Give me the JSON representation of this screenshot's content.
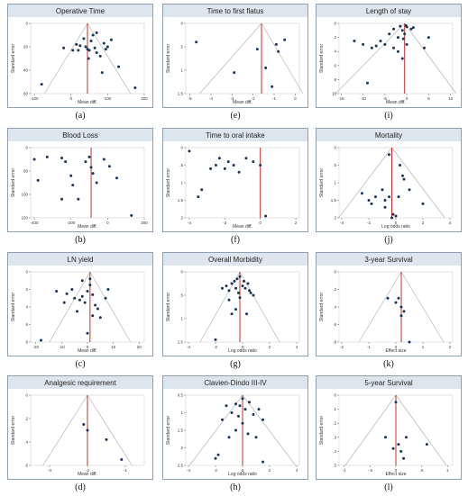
{
  "colors": {
    "panel_bg": "#ffffff",
    "title_band": "#dde6ee",
    "frame": "#8ea0b2",
    "funnel": "#b5b5b5",
    "center_line": "#c0302f",
    "point": "#1a3556",
    "axis_text": "#333333"
  },
  "chart_data": [
    {
      "type": "scatter",
      "panel_label": "(a)",
      "title": "Operative Time",
      "xlabel": "Mean diff.",
      "ylabel": "Standard error",
      "xlim": [
        -110,
        200
      ],
      "ylim": [
        0,
        60
      ],
      "xticks": [
        -100,
        0,
        100,
        200
      ],
      "xtick_labels": [
        "-100",
        "0",
        "100",
        "200"
      ],
      "yticks": [
        0,
        20,
        40,
        60
      ],
      "ytick_labels": [
        "0",
        "20",
        "40",
        "60"
      ],
      "center": 45,
      "funnel": true,
      "points": [
        [
          -80,
          52
        ],
        [
          -20,
          21
        ],
        [
          5,
          23
        ],
        [
          15,
          18
        ],
        [
          25,
          19
        ],
        [
          35,
          13
        ],
        [
          40,
          20
        ],
        [
          45,
          22
        ],
        [
          50,
          23
        ],
        [
          55,
          15
        ],
        [
          60,
          10
        ],
        [
          65,
          21
        ],
        [
          70,
          25
        ],
        [
          80,
          28
        ],
        [
          90,
          17
        ],
        [
          95,
          22
        ],
        [
          100,
          20
        ],
        [
          130,
          37
        ],
        [
          175,
          55
        ],
        [
          110,
          14
        ],
        [
          20,
          23
        ],
        [
          48,
          30
        ],
        [
          85,
          42
        ],
        [
          70,
          8
        ]
      ]
    },
    {
      "type": "scatter",
      "panel_label": "(b)",
      "title": "Blood Loss",
      "xlabel": "Mean diff.",
      "ylabel": "Standard error",
      "xlim": [
        -420,
        200
      ],
      "ylim": [
        0,
        150
      ],
      "xticks": [
        -400,
        -200,
        0,
        200
      ],
      "xtick_labels": [
        "-400",
        "-200",
        "0",
        "200"
      ],
      "yticks": [
        0,
        50,
        100,
        150
      ],
      "ytick_labels": [
        "0",
        "50",
        "100",
        "150"
      ],
      "center": -90,
      "funnel": false,
      "points": [
        [
          -400,
          25
        ],
        [
          -380,
          70
        ],
        [
          -250,
          22
        ],
        [
          -230,
          30
        ],
        [
          -200,
          60
        ],
        [
          -190,
          80
        ],
        [
          -120,
          30
        ],
        [
          -100,
          20
        ],
        [
          -90,
          42
        ],
        [
          -80,
          55
        ],
        [
          -60,
          75
        ],
        [
          -20,
          25
        ],
        [
          10,
          40
        ],
        [
          50,
          65
        ],
        [
          130,
          145
        ],
        [
          -250,
          110
        ],
        [
          -330,
          20
        ],
        [
          -160,
          110
        ]
      ]
    },
    {
      "type": "scatter",
      "panel_label": "(c)",
      "title": "LN yield",
      "xlabel": "Mean diff.",
      "ylabel": "Standard error",
      "xlim": [
        -22,
        22
      ],
      "ylim": [
        0,
        8
      ],
      "xticks": [
        -20,
        -10,
        0,
        10,
        20
      ],
      "xtick_labels": [
        "-20",
        "-10",
        "0",
        "10",
        "20"
      ],
      "yticks": [
        0,
        2,
        4,
        6,
        8
      ],
      "ytick_labels": [
        "0",
        "2",
        "4",
        "6",
        "8"
      ],
      "center": 1,
      "funnel": true,
      "points": [
        [
          -18,
          7.8
        ],
        [
          -12,
          2.2
        ],
        [
          -8,
          2.5
        ],
        [
          -6,
          2.0
        ],
        [
          -5,
          3.0
        ],
        [
          -4,
          4.5
        ],
        [
          -3,
          3.2
        ],
        [
          -2,
          2.8
        ],
        [
          -1,
          3.5
        ],
        [
          0,
          2.2
        ],
        [
          1,
          1.5
        ],
        [
          2,
          2.6
        ],
        [
          3,
          3.8
        ],
        [
          4,
          4.2
        ],
        [
          5,
          5.2
        ],
        [
          7,
          3.0
        ],
        [
          8,
          2.0
        ],
        [
          -9,
          3.5
        ],
        [
          2,
          5.0
        ],
        [
          0,
          7.0
        ],
        [
          -2,
          1.0
        ],
        [
          1,
          0.8
        ]
      ]
    },
    {
      "type": "scatter",
      "panel_label": "(d)",
      "title": "Analgesic requirement",
      "xlabel": "Mean diff.",
      "ylabel": "Standard error",
      "xlim": [
        -3.5,
        -0.5
      ],
      "ylim": [
        0,
        0.6
      ],
      "xticks": [
        -3,
        -2,
        -1
      ],
      "xtick_labels": [
        "-3",
        "-2",
        "-1"
      ],
      "yticks": [
        0,
        0.2,
        0.4,
        0.6
      ],
      "ytick_labels": [
        "0",
        ".2",
        ".4",
        ".6"
      ],
      "center": -2.0,
      "funnel": true,
      "points": [
        [
          -2.1,
          0.25
        ],
        [
          -2.0,
          0.3
        ],
        [
          -1.5,
          0.38
        ],
        [
          -1.1,
          0.55
        ]
      ]
    },
    {
      "type": "scatter",
      "panel_label": "(e)",
      "title": "Time to first flatus",
      "xlabel": "Mean diff.",
      "ylabel": "Standard error",
      "xlim": [
        -5.2,
        0.2
      ],
      "ylim": [
        0,
        1.5
      ],
      "xticks": [
        -5,
        -4,
        -3,
        -2,
        -1,
        0
      ],
      "xtick_labels": [
        "-5",
        "-4",
        "-3",
        "-2",
        "-1",
        "0"
      ],
      "yticks": [
        0,
        0.5,
        1,
        1.5
      ],
      "ytick_labels": [
        "0",
        ".5",
        "1",
        "1.5"
      ],
      "center": -1.6,
      "funnel": true,
      "points": [
        [
          -4.7,
          0.4
        ],
        [
          -2.9,
          1.05
        ],
        [
          -1.8,
          0.55
        ],
        [
          -1.4,
          0.95
        ],
        [
          -0.9,
          0.45
        ],
        [
          -0.8,
          0.6
        ],
        [
          -0.5,
          0.35
        ],
        [
          -1.1,
          1.35
        ]
      ]
    },
    {
      "type": "scatter",
      "panel_label": "(f)",
      "title": "Time to oral intake",
      "xlabel": "Mean diff.",
      "ylabel": "Standard error",
      "xlim": [
        -4.2,
        2.2
      ],
      "ylim": [
        0,
        2
      ],
      "xticks": [
        -4,
        -2,
        0,
        2
      ],
      "xtick_labels": [
        "-4",
        "-2",
        "0",
        "2"
      ],
      "yticks": [
        0,
        0.5,
        1,
        1.5,
        2
      ],
      "ytick_labels": [
        "0",
        ".5",
        "1",
        "1.5",
        "2"
      ],
      "center": 0,
      "funnel": false,
      "points": [
        [
          -4.0,
          0.1
        ],
        [
          -3.5,
          1.4
        ],
        [
          -3.3,
          1.2
        ],
        [
          -2.8,
          0.6
        ],
        [
          -2.5,
          0.5
        ],
        [
          -2.3,
          0.3
        ],
        [
          -2.0,
          0.6
        ],
        [
          -1.8,
          0.4
        ],
        [
          -1.5,
          0.5
        ],
        [
          -1.2,
          0.7
        ],
        [
          -0.8,
          0.3
        ],
        [
          -0.4,
          0.4
        ],
        [
          0.0,
          0.5
        ],
        [
          0.3,
          1.95
        ]
      ]
    },
    {
      "type": "scatter",
      "panel_label": "(g)",
      "title": "Overall Morbidity",
      "xlabel": "Log odds ratio",
      "ylabel": "Standard error",
      "xlim": [
        -4.2,
        4.2
      ],
      "ylim": [
        0,
        1.5
      ],
      "xticks": [
        -4,
        -2,
        0,
        2,
        4
      ],
      "xtick_labels": [
        "-4",
        "-2",
        "0",
        "2",
        "4"
      ],
      "yticks": [
        0,
        0.5,
        1,
        1.5
      ],
      "ytick_labels": [
        "0",
        ".5",
        "1",
        "1.5"
      ],
      "center": -0.2,
      "funnel": true,
      "points": [
        [
          -2.0,
          1.45
        ],
        [
          -1.5,
          0.35
        ],
        [
          -1.2,
          0.3
        ],
        [
          -1.0,
          0.4
        ],
        [
          -0.8,
          0.25
        ],
        [
          -0.6,
          0.2
        ],
        [
          -0.5,
          0.35
        ],
        [
          -0.4,
          0.15
        ],
        [
          -0.3,
          0.45
        ],
        [
          -0.2,
          0.1
        ],
        [
          0.0,
          0.3
        ],
        [
          0.1,
          0.2
        ],
        [
          0.2,
          0.35
        ],
        [
          0.4,
          0.25
        ],
        [
          0.5,
          0.4
        ],
        [
          0.8,
          0.5
        ],
        [
          -0.8,
          0.9
        ],
        [
          -0.5,
          0.8
        ],
        [
          0.3,
          0.9
        ],
        [
          -1.0,
          0.6
        ],
        [
          0.6,
          0.45
        ],
        [
          -0.2,
          0.55
        ]
      ]
    },
    {
      "type": "scatter",
      "panel_label": "(h)",
      "title": "Clavien-Dindo III-IV",
      "xlabel": "Log odds ratio",
      "ylabel": "Standard error",
      "xlim": [
        -4.2,
        4.2
      ],
      "ylim": [
        0.5,
        2.5
      ],
      "xticks": [
        -4,
        -2,
        0,
        2,
        4
      ],
      "xtick_labels": [
        "-4",
        "-2",
        "0",
        "2",
        "4"
      ],
      "yticks": [
        0.5,
        1,
        1.5,
        2,
        2.5
      ],
      "ytick_labels": [
        "0.5",
        "1",
        "1.5",
        "2",
        "2.5"
      ],
      "center": 0,
      "funnel": true,
      "points": [
        [
          -1.5,
          1.2
        ],
        [
          -1.2,
          0.8
        ],
        [
          -0.8,
          1.0
        ],
        [
          -0.5,
          0.75
        ],
        [
          -0.3,
          1.1
        ],
        [
          0.0,
          0.6
        ],
        [
          0.2,
          0.9
        ],
        [
          0.5,
          0.7
        ],
        [
          0.8,
          1.05
        ],
        [
          1.2,
          0.9
        ],
        [
          1.5,
          1.2
        ],
        [
          -0.5,
          1.5
        ],
        [
          0.4,
          1.6
        ],
        [
          -1.0,
          1.7
        ],
        [
          1.0,
          1.7
        ],
        [
          -2.0,
          2.3
        ],
        [
          -1.8,
          2.2
        ],
        [
          1.5,
          2.4
        ],
        [
          0.0,
          1.3
        ],
        [
          -0.2,
          0.8
        ]
      ]
    },
    {
      "type": "scatter",
      "panel_label": "(i)",
      "title": "Length of stay",
      "xlabel": "Mean diff.",
      "ylabel": "Standard error",
      "xlim": [
        -15.5,
        10.5
      ],
      "ylim": [
        0,
        10
      ],
      "xticks": [
        -15,
        -10,
        -5,
        0,
        5,
        10
      ],
      "xtick_labels": [
        "-15",
        "-10",
        "-5",
        "0",
        "5",
        "10"
      ],
      "yticks": [
        0,
        2,
        4,
        6,
        8,
        10
      ],
      "ytick_labels": [
        "0",
        "2",
        "4",
        "6",
        "8",
        "10"
      ],
      "center": -0.5,
      "funnel": true,
      "points": [
        [
          -12,
          2.5
        ],
        [
          -10,
          3.0
        ],
        [
          -9,
          8.5
        ],
        [
          -8,
          3.5
        ],
        [
          -7,
          3.2
        ],
        [
          -6,
          2.5
        ],
        [
          -5,
          3.0
        ],
        [
          -4,
          1.5
        ],
        [
          -3,
          3.5
        ],
        [
          -2,
          2.0
        ],
        [
          -1,
          1.0
        ],
        [
          0,
          0.5
        ],
        [
          1,
          0.8
        ],
        [
          -1.5,
          0.4
        ],
        [
          -0.5,
          1.5
        ],
        [
          0,
          3.0
        ],
        [
          -2,
          4.0
        ],
        [
          -1,
          5.0
        ],
        [
          4,
          3.5
        ],
        [
          5,
          2.0
        ],
        [
          -0.2,
          0.3
        ],
        [
          -3,
          0.8
        ],
        [
          -0.8,
          2.2
        ],
        [
          1.5,
          0.6
        ]
      ]
    },
    {
      "type": "scatter",
      "panel_label": "(j)",
      "title": "Mortality",
      "xlabel": "Log odds ratio",
      "ylabel": "Standard error",
      "xlim": [
        -4.2,
        4.2
      ],
      "ylim": [
        0,
        2
      ],
      "xticks": [
        -4,
        -2,
        0,
        2,
        4
      ],
      "xtick_labels": [
        "-4",
        "-2",
        "0",
        "2",
        "4"
      ],
      "yticks": [
        0,
        0.5,
        1,
        1.5,
        2
      ],
      "ytick_labels": [
        "0",
        ".5",
        "1",
        "1.5",
        "2"
      ],
      "center": -0.3,
      "funnel": true,
      "points": [
        [
          -2.5,
          1.3
        ],
        [
          -2.0,
          1.5
        ],
        [
          -1.8,
          1.6
        ],
        [
          -1.0,
          1.2
        ],
        [
          -0.8,
          1.5
        ],
        [
          -0.5,
          1.4
        ],
        [
          -0.3,
          2.0
        ],
        [
          -0.2,
          1.9
        ],
        [
          0.0,
          1.95
        ],
        [
          0.3,
          0.5
        ],
        [
          0.5,
          0.8
        ],
        [
          0.6,
          0.9
        ],
        [
          1.0,
          1.2
        ],
        [
          2.0,
          1.6
        ],
        [
          -1.5,
          1.4
        ],
        [
          -0.5,
          0.2
        ],
        [
          0.2,
          1.4
        ],
        [
          -0.8,
          1.7
        ]
      ]
    },
    {
      "type": "scatter",
      "panel_label": "(k)",
      "title": "3-year Survival",
      "xlabel": "Effect size",
      "ylabel": "Standard error",
      "xlim": [
        -2.1,
        2.1
      ],
      "ylim": [
        0,
        0.8
      ],
      "xticks": [
        -2,
        -1,
        0,
        1,
        2
      ],
      "xtick_labels": [
        "-2",
        "-1",
        "0",
        "1",
        "2"
      ],
      "yticks": [
        0,
        0.2,
        0.4,
        0.6,
        0.8
      ],
      "ytick_labels": [
        "0",
        ".2",
        ".4",
        ".6",
        ".8"
      ],
      "center": 0.2,
      "funnel": true,
      "points": [
        [
          -0.3,
          0.3
        ],
        [
          0.0,
          0.35
        ],
        [
          0.1,
          0.3
        ],
        [
          0.2,
          0.4
        ],
        [
          0.3,
          0.45
        ],
        [
          0.2,
          0.5
        ],
        [
          0.5,
          0.8
        ]
      ]
    },
    {
      "type": "scatter",
      "panel_label": "(l)",
      "title": "5-year Survival",
      "xlabel": "Effect size",
      "ylabel": "Standard error",
      "xlim": [
        -1.1,
        1.1
      ],
      "ylim": [
        0,
        0.5
      ],
      "xticks": [
        -1,
        -0.5,
        0,
        0.5,
        1
      ],
      "xtick_labels": [
        "-1",
        "-.5",
        "0",
        ".5",
        "1"
      ],
      "yticks": [
        0,
        0.1,
        0.2,
        0.3,
        0.4,
        0.5
      ],
      "ytick_labels": [
        "0",
        ".1",
        ".2",
        ".3",
        ".4",
        ".5"
      ],
      "center": 0,
      "funnel": true,
      "points": [
        [
          -0.2,
          0.3
        ],
        [
          0.0,
          0.05
        ],
        [
          0.05,
          0.35
        ],
        [
          0.1,
          0.4
        ],
        [
          0.15,
          0.45
        ],
        [
          0.2,
          0.3
        ],
        [
          0.6,
          0.35
        ],
        [
          -0.05,
          0.38
        ]
      ]
    }
  ]
}
